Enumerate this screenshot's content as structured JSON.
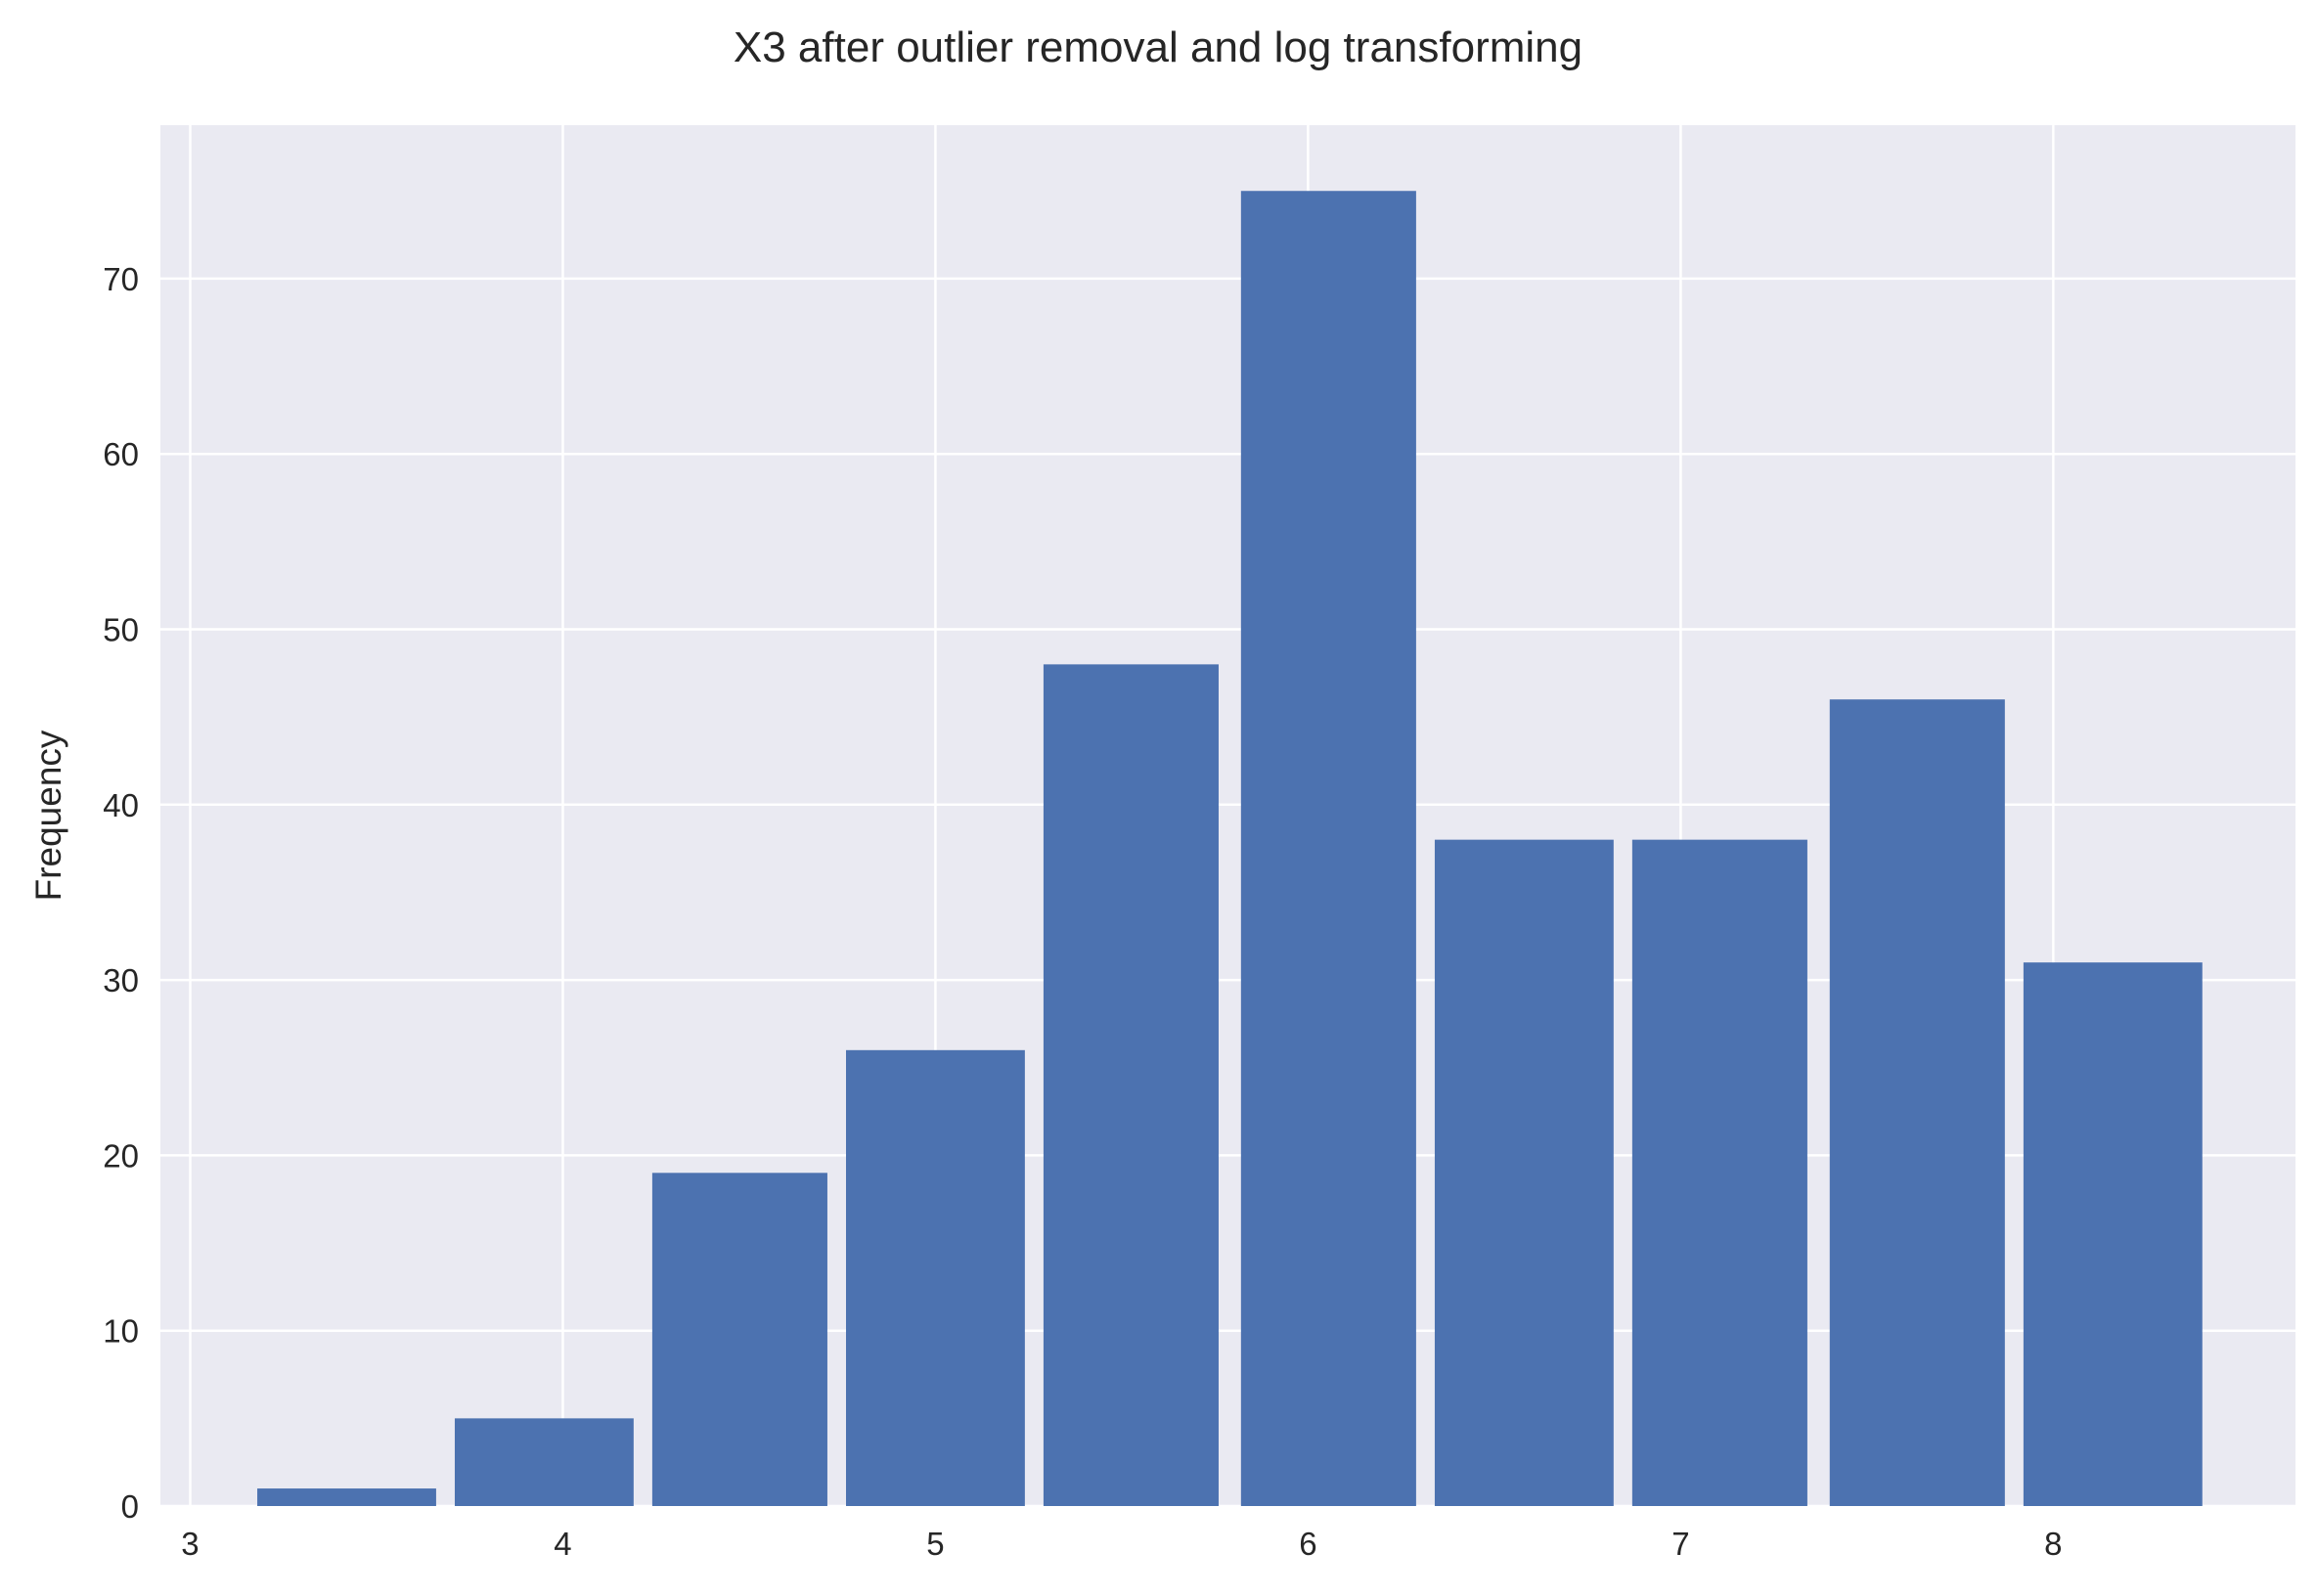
{
  "chart_data": {
    "type": "bar",
    "title": "X3 after outlier removal and log transforming",
    "xlabel": "",
    "ylabel": "Frequency",
    "bins": [
      {
        "x0": 3.18,
        "x1": 3.66,
        "value": 1
      },
      {
        "x0": 3.71,
        "x1": 4.19,
        "value": 5
      },
      {
        "x0": 4.24,
        "x1": 4.71,
        "value": 19
      },
      {
        "x0": 4.76,
        "x1": 5.24,
        "value": 26
      },
      {
        "x0": 5.29,
        "x1": 5.76,
        "value": 48
      },
      {
        "x0": 5.82,
        "x1": 6.29,
        "value": 75
      },
      {
        "x0": 6.34,
        "x1": 6.82,
        "value": 38
      },
      {
        "x0": 6.87,
        "x1": 7.34,
        "value": 38
      },
      {
        "x0": 7.4,
        "x1": 7.87,
        "value": 46
      },
      {
        "x0": 7.92,
        "x1": 8.4,
        "value": 31
      }
    ],
    "xticks": [
      "3",
      "4",
      "5",
      "6",
      "7",
      "8"
    ],
    "yticks": [
      "0",
      "10",
      "20",
      "30",
      "40",
      "50",
      "60",
      "70"
    ],
    "xlim": [
      2.92,
      8.65
    ],
    "ylim": [
      0,
      78.75
    ],
    "grid": true,
    "colors": {
      "bar": "#4c72b0",
      "background": "#eaeaf2",
      "grid": "#ffffff",
      "text": "#262626"
    }
  }
}
